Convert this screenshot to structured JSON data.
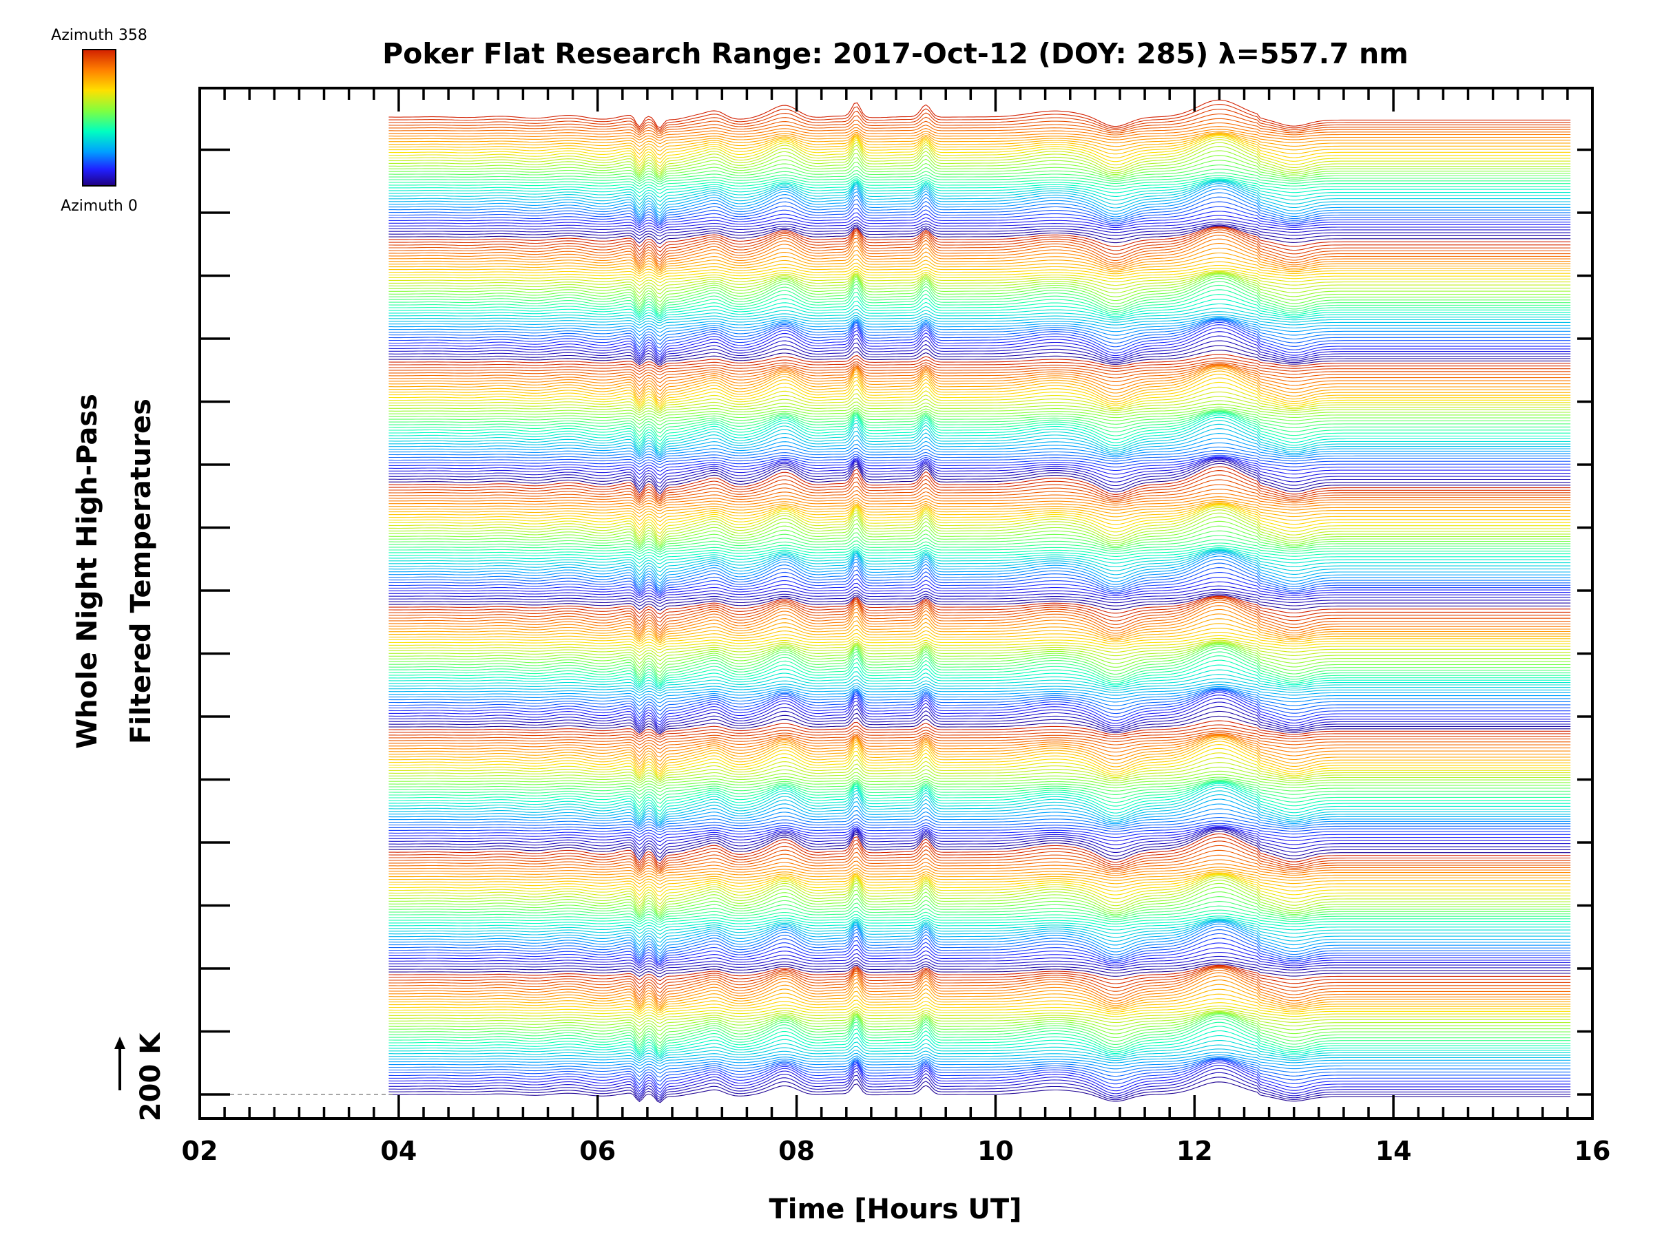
{
  "chart_data": {
    "type": "line",
    "title": "Poker Flat Research Range: 2017-Oct-12 (DOY: 285) λ=557.7 nm",
    "xlabel": "Time [Hours UT]",
    "ylabel_line1": "Whole Night High-Pass",
    "ylabel_line2": "Filtered Temperatures",
    "xlim": [
      2,
      16
    ],
    "x_ticks": [
      "02",
      "04",
      "06",
      "08",
      "10",
      "12",
      "14",
      "16"
    ],
    "x_range_data": [
      3.9,
      15.8
    ],
    "scale_bar_label": "200 K",
    "colorbar": {
      "top_label": "Azimuth 358",
      "bottom_label": "Azimuth 0",
      "colors": [
        "#d22000",
        "#ff8000",
        "#ffe000",
        "#80ff40",
        "#00ffc0",
        "#00a0ff",
        "#2020ff",
        "#200080"
      ]
    },
    "series_description": "Stacked high-pass filtered temperature traces vs azimuth (0-358 degrees), offset vertically; color encodes azimuth",
    "series_count": 360,
    "features": [
      {
        "time": 6.4,
        "type": "dip"
      },
      {
        "time": 6.6,
        "type": "dip"
      },
      {
        "time": 7.9,
        "type": "peak"
      },
      {
        "time": 8.6,
        "type": "peak"
      },
      {
        "time": 9.3,
        "type": "peak"
      },
      {
        "time": 11.2,
        "type": "dip"
      },
      {
        "time": 12.3,
        "type": "peak"
      },
      {
        "time": 12.7,
        "type": "drop"
      }
    ]
  }
}
